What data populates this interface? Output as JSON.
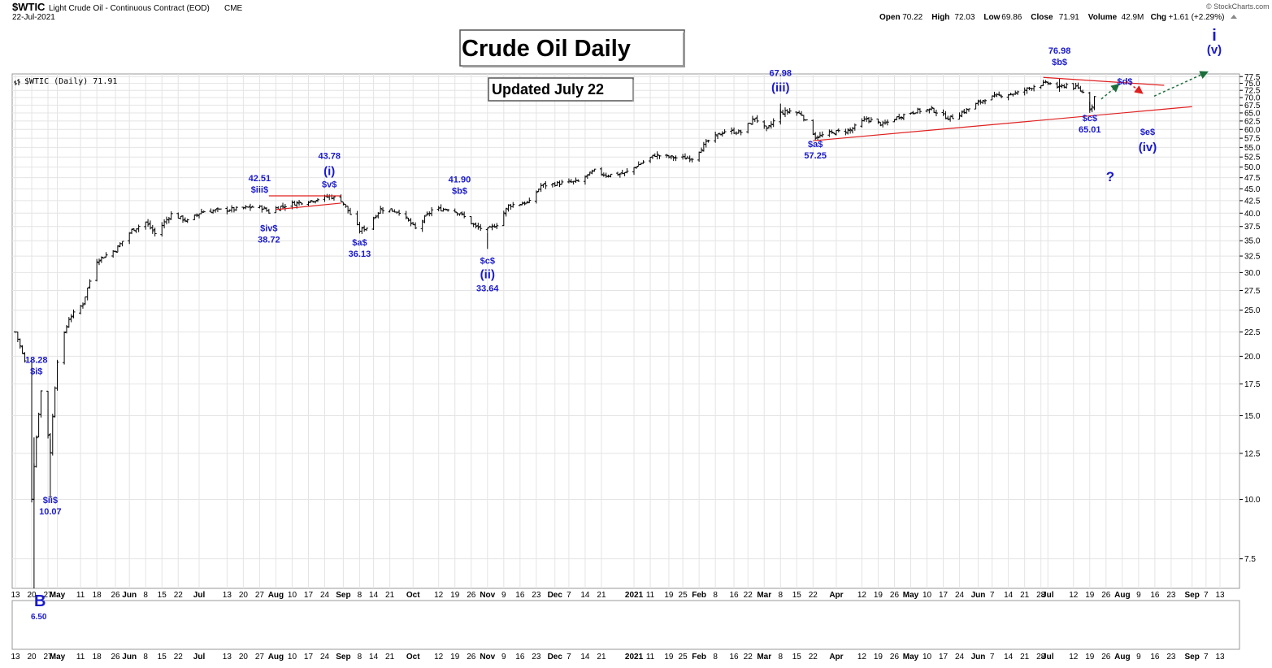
{
  "header": {
    "symbol": "$WTIC",
    "description": "Light Crude Oil - Continuous Contract (EOD)",
    "exchange": "CME",
    "date": "22-Jul-2021",
    "stats": [
      {
        "label": "Open",
        "value": "70.22"
      },
      {
        "label": "High",
        "value": "72.03"
      },
      {
        "label": "Low",
        "value": "69.86"
      },
      {
        "label": "Close",
        "value": "71.91"
      },
      {
        "label": "Volume",
        "value": "42.9M"
      },
      {
        "label": "Chg",
        "value": "+1.61 (+2.29%)"
      }
    ],
    "watermark": "© StockCharts.com"
  },
  "legend_label": "$WTIC (Daily) 71.91",
  "title_box": "Crude Oil Daily",
  "update_box": "Updated July 22",
  "colors": {
    "bars": "#000000",
    "trendline": "#e02020",
    "wave_label": "#1a1acc",
    "arrow_up": "#1a6e3a",
    "arrow_down": "#e02020",
    "grid": "#e4e4e4"
  },
  "chart_data": {
    "type": "ohlc",
    "y_scale": "log",
    "ylim": [
      6.5,
      78.5
    ],
    "y_ticks": [
      "7.5",
      "10.0",
      "12.5",
      "15.0",
      "17.5",
      "20.0",
      "22.5",
      "25.0",
      "27.5",
      "30.0",
      "32.5",
      "35.0",
      "37.5",
      "40.0",
      "42.5",
      "45.0",
      "47.5",
      "50.0",
      "52.5",
      "55.0",
      "57.5",
      "60.0",
      "62.5",
      "65.0",
      "67.5",
      "70.0",
      "72.5",
      "75.0",
      "77.5"
    ],
    "x_range": [
      "2020-04-13",
      "2021-09-13"
    ],
    "x_ticks": [
      {
        "date": "2020-04-13",
        "label": "13"
      },
      {
        "date": "2020-04-20",
        "label": "20"
      },
      {
        "date": "2020-04-27",
        "label": "27"
      },
      {
        "date": "2020-05-01",
        "label": "May"
      },
      {
        "date": "2020-05-11",
        "label": "11"
      },
      {
        "date": "2020-05-18",
        "label": "18"
      },
      {
        "date": "2020-05-26",
        "label": "26"
      },
      {
        "date": "2020-06-01",
        "label": "Jun"
      },
      {
        "date": "2020-06-08",
        "label": "8"
      },
      {
        "date": "2020-06-15",
        "label": "15"
      },
      {
        "date": "2020-06-22",
        "label": "22"
      },
      {
        "date": "2020-07-01",
        "label": "Jul"
      },
      {
        "date": "2020-07-13",
        "label": "13"
      },
      {
        "date": "2020-07-20",
        "label": "20"
      },
      {
        "date": "2020-07-27",
        "label": "27"
      },
      {
        "date": "2020-08-03",
        "label": "Aug"
      },
      {
        "date": "2020-08-10",
        "label": "10"
      },
      {
        "date": "2020-08-17",
        "label": "17"
      },
      {
        "date": "2020-08-24",
        "label": "24"
      },
      {
        "date": "2020-09-01",
        "label": "Sep"
      },
      {
        "date": "2020-09-08",
        "label": "8"
      },
      {
        "date": "2020-09-14",
        "label": "14"
      },
      {
        "date": "2020-09-21",
        "label": "21"
      },
      {
        "date": "2020-10-01",
        "label": "Oct"
      },
      {
        "date": "2020-10-12",
        "label": "12"
      },
      {
        "date": "2020-10-19",
        "label": "19"
      },
      {
        "date": "2020-10-26",
        "label": "26"
      },
      {
        "date": "2020-11-02",
        "label": "Nov"
      },
      {
        "date": "2020-11-09",
        "label": "9"
      },
      {
        "date": "2020-11-16",
        "label": "16"
      },
      {
        "date": "2020-11-23",
        "label": "23"
      },
      {
        "date": "2020-12-01",
        "label": "Dec"
      },
      {
        "date": "2020-12-07",
        "label": "7"
      },
      {
        "date": "2020-12-14",
        "label": "14"
      },
      {
        "date": "2020-12-21",
        "label": "21"
      },
      {
        "date": "2021-01-04",
        "label": "2021"
      },
      {
        "date": "2021-01-11",
        "label": "11"
      },
      {
        "date": "2021-01-19",
        "label": "19"
      },
      {
        "date": "2021-01-25",
        "label": "25"
      },
      {
        "date": "2021-02-01",
        "label": "Feb"
      },
      {
        "date": "2021-02-08",
        "label": "8"
      },
      {
        "date": "2021-02-16",
        "label": "16"
      },
      {
        "date": "2021-02-22",
        "label": "22"
      },
      {
        "date": "2021-03-01",
        "label": "Mar"
      },
      {
        "date": "2021-03-08",
        "label": "8"
      },
      {
        "date": "2021-03-15",
        "label": "15"
      },
      {
        "date": "2021-03-22",
        "label": "22"
      },
      {
        "date": "2021-04-01",
        "label": "Apr"
      },
      {
        "date": "2021-04-12",
        "label": "12"
      },
      {
        "date": "2021-04-19",
        "label": "19"
      },
      {
        "date": "2021-04-26",
        "label": "26"
      },
      {
        "date": "2021-05-03",
        "label": "May"
      },
      {
        "date": "2021-05-10",
        "label": "10"
      },
      {
        "date": "2021-05-17",
        "label": "17"
      },
      {
        "date": "2021-05-24",
        "label": "24"
      },
      {
        "date": "2021-06-01",
        "label": "Jun"
      },
      {
        "date": "2021-06-07",
        "label": "7"
      },
      {
        "date": "2021-06-14",
        "label": "14"
      },
      {
        "date": "2021-06-21",
        "label": "21"
      },
      {
        "date": "2021-06-28",
        "label": "28"
      },
      {
        "date": "2021-07-01",
        "label": "Jul"
      },
      {
        "date": "2021-07-12",
        "label": "12"
      },
      {
        "date": "2021-07-19",
        "label": "19"
      },
      {
        "date": "2021-07-26",
        "label": "26"
      },
      {
        "date": "2021-08-02",
        "label": "Aug"
      },
      {
        "date": "2021-08-09",
        "label": "9"
      },
      {
        "date": "2021-08-16",
        "label": "16"
      },
      {
        "date": "2021-08-23",
        "label": "23"
      },
      {
        "date": "2021-09-01",
        "label": "Sep"
      },
      {
        "date": "2021-09-07",
        "label": "7"
      },
      {
        "date": "2021-09-13",
        "label": "13"
      }
    ],
    "price_path": [
      [
        "2020-04-13",
        22.5
      ],
      [
        "2020-04-17",
        19.5
      ],
      [
        "2020-04-20",
        10.07
      ],
      [
        "2020-04-21",
        11.8
      ],
      [
        "2020-04-24",
        16.9
      ],
      [
        "2020-04-28",
        12.6
      ],
      [
        "2020-05-01",
        19.6
      ],
      [
        "2020-05-06",
        24.0
      ],
      [
        "2020-05-12",
        25.8
      ],
      [
        "2020-05-18",
        31.8
      ],
      [
        "2020-05-26",
        33.5
      ],
      [
        "2020-06-02",
        36.8
      ],
      [
        "2020-06-08",
        38.3
      ],
      [
        "2020-06-12",
        36.2
      ],
      [
        "2020-06-19",
        39.8
      ],
      [
        "2020-06-26",
        38.5
      ],
      [
        "2020-07-02",
        40.3
      ],
      [
        "2020-07-10",
        40.6
      ],
      [
        "2020-07-17",
        40.8
      ],
      [
        "2020-07-24",
        41.2
      ],
      [
        "2020-07-28",
        41.1
      ],
      [
        "2020-07-31",
        40.2
      ],
      [
        "2020-08-03",
        41.0
      ],
      [
        "2020-08-10",
        41.9
      ],
      [
        "2020-08-18",
        42.5
      ],
      [
        "2020-08-26",
        43.4
      ],
      [
        "2020-08-31",
        42.6
      ],
      [
        "2020-09-04",
        39.8
      ],
      [
        "2020-09-08",
        36.8
      ],
      [
        "2020-09-11",
        37.3
      ],
      [
        "2020-09-17",
        40.8
      ],
      [
        "2020-09-25",
        40.3
      ],
      [
        "2020-10-02",
        37.1
      ],
      [
        "2020-10-09",
        40.6
      ],
      [
        "2020-10-16",
        40.9
      ],
      [
        "2020-10-21",
        40.0
      ],
      [
        "2020-10-28",
        37.4
      ],
      [
        "2020-11-02",
        36.9
      ],
      [
        "2020-11-06",
        37.9
      ],
      [
        "2020-11-11",
        41.5
      ],
      [
        "2020-11-20",
        42.2
      ],
      [
        "2020-11-25",
        45.7
      ],
      [
        "2020-12-04",
        46.3
      ],
      [
        "2020-12-11",
        46.6
      ],
      [
        "2020-12-18",
        49.1
      ],
      [
        "2020-12-23",
        48.1
      ],
      [
        "2020-12-31",
        48.5
      ],
      [
        "2021-01-06",
        50.6
      ],
      [
        "2021-01-13",
        53.0
      ],
      [
        "2021-01-22",
        52.3
      ],
      [
        "2021-01-29",
        52.2
      ],
      [
        "2021-02-05",
        56.8
      ],
      [
        "2021-02-12",
        59.5
      ],
      [
        "2021-02-19",
        59.2
      ],
      [
        "2021-02-25",
        63.5
      ],
      [
        "2021-03-02",
        59.8
      ],
      [
        "2021-03-08",
        65.0
      ],
      [
        "2021-03-12",
        65.6
      ],
      [
        "2021-03-17",
        64.6
      ],
      [
        "2021-03-23",
        57.8
      ],
      [
        "2021-03-31",
        59.2
      ],
      [
        "2021-04-07",
        59.8
      ],
      [
        "2021-04-14",
        63.2
      ],
      [
        "2021-04-21",
        61.4
      ],
      [
        "2021-04-28",
        63.9
      ],
      [
        "2021-05-05",
        65.6
      ],
      [
        "2021-05-12",
        66.1
      ],
      [
        "2021-05-19",
        63.4
      ],
      [
        "2021-05-21",
        63.6
      ],
      [
        "2021-05-28",
        66.3
      ],
      [
        "2021-06-04",
        69.6
      ],
      [
        "2021-06-11",
        70.9
      ],
      [
        "2021-06-18",
        71.6
      ],
      [
        "2021-06-25",
        74.0
      ],
      [
        "2021-07-01",
        75.2
      ],
      [
        "2021-07-06",
        73.4
      ],
      [
        "2021-07-09",
        74.6
      ],
      [
        "2021-07-14",
        73.1
      ],
      [
        "2021-07-16",
        71.8
      ],
      [
        "2021-07-19",
        66.4
      ],
      [
        "2021-07-20",
        67.4
      ],
      [
        "2021-07-21",
        70.3
      ],
      [
        "2021-07-22",
        71.91
      ]
    ],
    "wave_labels": [
      {
        "date": "2020-04-22",
        "price": 18.28,
        "dy": -15,
        "size": "s",
        "lines": [
          "18.28",
          "$i$"
        ]
      },
      {
        "date": "2020-04-28",
        "price": 10.07,
        "dy": 6,
        "size": "s",
        "lines": [
          "$ii$",
          "10.07"
        ]
      },
      {
        "date": "2020-07-27",
        "price": 42.51,
        "dy": -24,
        "size": "s",
        "lines": [
          "42.51",
          "$iii$"
        ]
      },
      {
        "date": "2020-07-31",
        "price": 38.72,
        "dy": 14,
        "size": "s",
        "lines": [
          "$iv$",
          "38.72"
        ]
      },
      {
        "date": "2020-08-26",
        "price": 43.78,
        "dy": -44,
        "size": "s",
        "lines": [
          "43.78"
        ]
      },
      {
        "date": "2020-08-26",
        "price": 43.78,
        "dy": -24,
        "size": "b",
        "lines": [
          "(i)"
        ]
      },
      {
        "date": "2020-08-26",
        "price": 43.78,
        "dy": -9,
        "size": "s",
        "lines": [
          "$v$"
        ]
      },
      {
        "date": "2020-09-08",
        "price": 36.13,
        "dy": 14,
        "size": "s",
        "lines": [
          "$a$",
          "36.13"
        ]
      },
      {
        "date": "2020-10-21",
        "price": 41.9,
        "dy": -26,
        "size": "s",
        "lines": [
          "41.90",
          "$b$"
        ]
      },
      {
        "date": "2020-11-02",
        "price": 33.64,
        "dy": 18,
        "size": "s",
        "lines": [
          "$c$"
        ]
      },
      {
        "date": "2020-11-02",
        "price": 33.64,
        "dy": 36,
        "size": "b",
        "lines": [
          "(ii)"
        ]
      },
      {
        "date": "2020-11-02",
        "price": 33.64,
        "dy": 52,
        "size": "s",
        "lines": [
          "33.64"
        ]
      },
      {
        "date": "2021-03-08",
        "price": 67.98,
        "dy": -34,
        "size": "s",
        "lines": [
          "67.98"
        ]
      },
      {
        "date": "2021-03-08",
        "price": 67.98,
        "dy": -15,
        "size": "b",
        "lines": [
          "(iii)"
        ]
      },
      {
        "date": "2021-03-23",
        "price": 57.25,
        "dy": 10,
        "size": "s",
        "lines": [
          "$a$",
          "57.25"
        ]
      },
      {
        "date": "2021-07-06",
        "price": 76.98,
        "dy": -30,
        "size": "s",
        "lines": [
          "76.98",
          "$b$"
        ]
      },
      {
        "date": "2021-07-19",
        "price": 65.01,
        "dy": 10,
        "size": "s",
        "lines": [
          "$c$",
          "65.01"
        ]
      }
    ],
    "annotations": {
      "b_label": "B",
      "b_value": "6.50",
      "projection_d": "$d$",
      "projection_e": "$e$",
      "projection_iv": "(iv)",
      "projection_v": "(v)",
      "projection_top": "i",
      "question": "?"
    }
  }
}
